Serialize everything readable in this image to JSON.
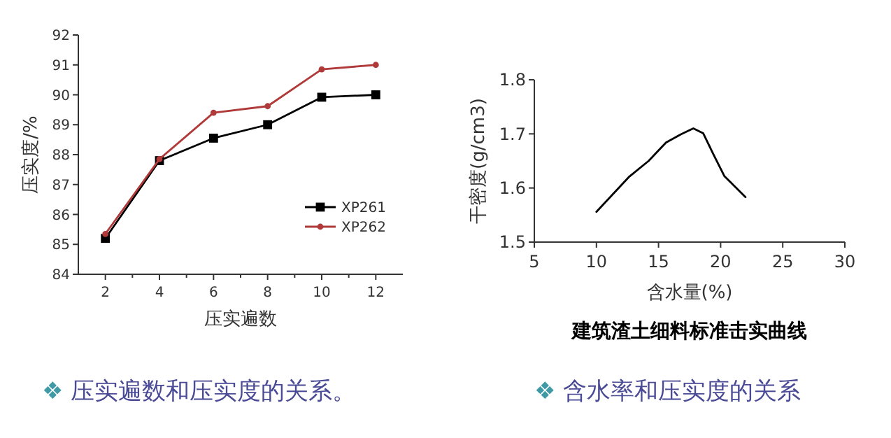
{
  "chart_data": [
    {
      "type": "line",
      "xlabel": "压实遍数",
      "ylabel": "压实度/%",
      "x": [
        2,
        4,
        6,
        8,
        10,
        12
      ],
      "series": [
        {
          "name": "XP261",
          "color": "#000000",
          "marker": "square",
          "values": [
            85.2,
            87.8,
            88.55,
            89.0,
            89.92,
            90.0
          ]
        },
        {
          "name": "XP262",
          "color": "#b03a3a",
          "marker": "circle",
          "values": [
            85.35,
            87.85,
            89.4,
            89.62,
            90.85,
            91.0
          ]
        }
      ],
      "xlim": [
        1,
        13
      ],
      "xticks": [
        2,
        {
          "value": 3,
          "label": null
        },
        4,
        {
          "value": 5,
          "label": null
        },
        6,
        {
          "value": 7,
          "label": null
        },
        8,
        {
          "value": 9,
          "label": null
        },
        10,
        {
          "value": 11,
          "label": null
        },
        12
      ],
      "ylim": [
        84,
        92
      ],
      "yticks": [
        84,
        85,
        86,
        87,
        88,
        89,
        90,
        91,
        92
      ],
      "legend": "bottom right",
      "grid": false,
      "annotations": [
        "❖ 压实遍数和压实度的关系。"
      ]
    },
    {
      "type": "line",
      "title": "建筑渣土细料标准击实曲线",
      "xlabel": "含水量(%)",
      "ylabel": "干密度(g/cm3)",
      "series": [
        {
          "color": "#000000",
          "x": [
            10,
            12.6,
            14.2,
            15.6,
            16.8,
            17.8,
            18.6,
            19.4,
            20.3,
            22
          ],
          "values": [
            1.556,
            1.62,
            1.65,
            1.684,
            1.699,
            1.71,
            1.701,
            1.663,
            1.622,
            1.583
          ]
        }
      ],
      "xlim": [
        5,
        30
      ],
      "xticks": [
        5,
        10,
        15,
        20,
        25,
        30
      ],
      "ylim": [
        1.5,
        1.8
      ],
      "yticks": [
        1.5,
        1.6,
        1.7,
        1.8
      ],
      "marker": "none",
      "grid": false,
      "annotations": [
        "❖ 含水率和压实度的关系"
      ]
    }
  ]
}
